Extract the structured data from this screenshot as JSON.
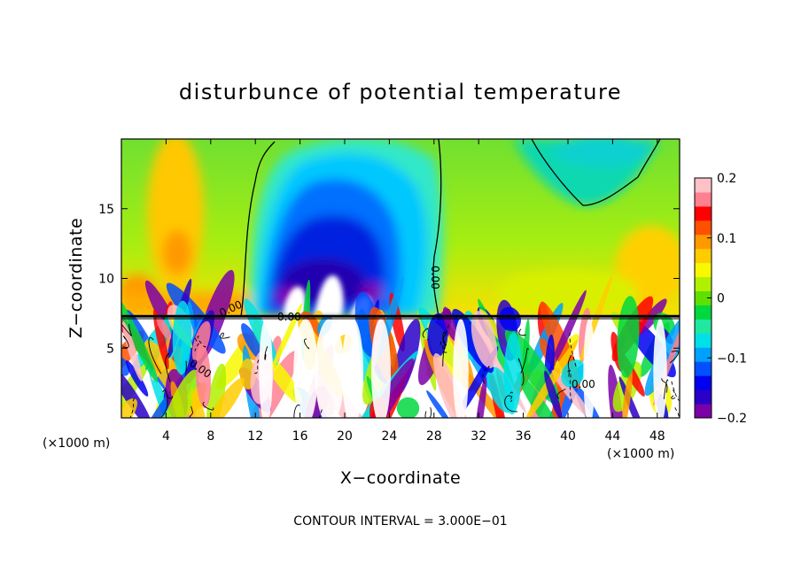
{
  "chart_data": {
    "type": "heatmap",
    "title": "disturbunce of potential temperature",
    "xlabel": "X−coordinate",
    "ylabel": "Z−coordinate",
    "x_unit": "(×1000 m)",
    "y_unit": "(×1000 m)",
    "xlim": [
      0,
      50
    ],
    "ylim": [
      0,
      20
    ],
    "x_ticks": [
      4,
      8,
      12,
      16,
      20,
      24,
      28,
      32,
      36,
      40,
      44,
      48
    ],
    "y_ticks": [
      5,
      10,
      15
    ],
    "colorbar": {
      "range": [
        -0.2,
        0.2
      ],
      "ticks": [
        0.2,
        0.1,
        0,
        -0.1,
        -0.2
      ],
      "tick_labels": [
        "0.2",
        "0.1",
        "0",
        "−0.1",
        "−0.2"
      ],
      "colors": [
        "#7c00a8",
        "#2a00c8",
        "#0000f0",
        "#0050ff",
        "#00a0ff",
        "#00e0e8",
        "#20e8a0",
        "#00d840",
        "#60e000",
        "#b0f000",
        "#f8f800",
        "#ffcc00",
        "#ff9900",
        "#ff5000",
        "#ff0000",
        "#ff8090",
        "#ffc0c8"
      ]
    },
    "contour_labels": [
      "0.00",
      "0.00",
      "0.00",
      "0.00",
      "0.00",
      "0.00"
    ],
    "footer": "CONTOUR INTERVAL = 3.000E−01",
    "upper_layer": {
      "z_range": [
        7.3,
        20
      ],
      "features": [
        {
          "name": "warm column",
          "x_center": 5,
          "z_center": 13,
          "value": 0.12
        },
        {
          "name": "cold dome",
          "x_center": 19,
          "z_center": 11,
          "value": -0.2
        },
        {
          "name": "cold cap",
          "x_center": 40,
          "z_center": 18,
          "value": -0.08
        }
      ]
    },
    "boundary_layer": {
      "z_range": [
        0,
        7.3
      ],
      "pattern": "turbulent eddies, saturated colors (|value| > 0.2)"
    }
  }
}
